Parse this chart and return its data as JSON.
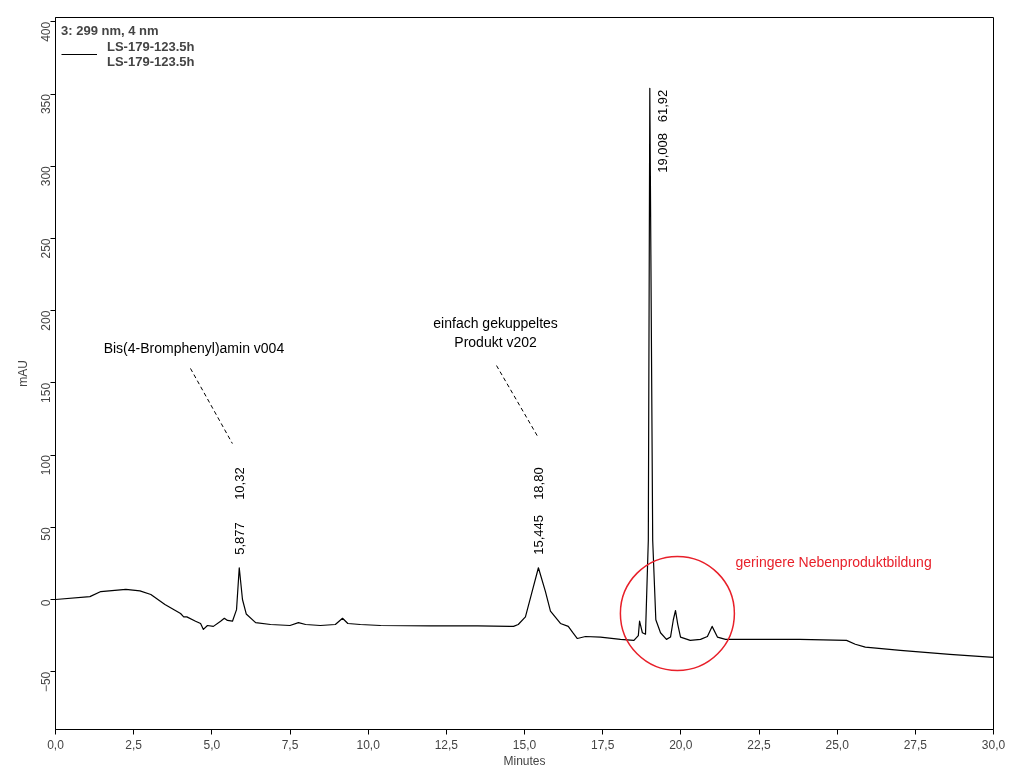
{
  "chart_data": {
    "type": "line",
    "xlabel": "Minutes",
    "ylabel": "mAU",
    "legend_title": "3: 299 nm, 4 nm",
    "xlim": [
      0,
      30
    ],
    "ylim": [
      -90,
      403
    ],
    "xticks": [
      {
        "value": 0,
        "label": "0,0"
      },
      {
        "value": 2.5,
        "label": "2,5"
      },
      {
        "value": 5,
        "label": "5,0"
      },
      {
        "value": 7.5,
        "label": "7,5"
      },
      {
        "value": 10,
        "label": "10,0"
      },
      {
        "value": 12.5,
        "label": "12,5"
      },
      {
        "value": 15,
        "label": "15,0"
      },
      {
        "value": 17.5,
        "label": "17,5"
      },
      {
        "value": 20,
        "label": "20,0"
      },
      {
        "value": 22.5,
        "label": "22,5"
      },
      {
        "value": 25,
        "label": "25,0"
      },
      {
        "value": 27.5,
        "label": "27,5"
      },
      {
        "value": 30,
        "label": "30,0"
      }
    ],
    "yticks": [
      -50,
      0,
      50,
      100,
      150,
      200,
      250,
      300,
      350,
      400
    ],
    "grid": false,
    "legend": "top left",
    "marker": "none",
    "line_style": "solid",
    "series": [
      {
        "name": "LS-179-123.5h\nLS-179-123.5h",
        "color": "#000000",
        "x": [
          0,
          1.1,
          1.45,
          2.25,
          2.7,
          3.05,
          3.5,
          4.0,
          4.1,
          4.2,
          4.48,
          4.64,
          4.73,
          4.86,
          5.05,
          5.28,
          5.4,
          5.5,
          5.66,
          5.79,
          5.877,
          5.98,
          6.1,
          6.4,
          6.88,
          7.5,
          7.77,
          8.0,
          8.47,
          8.95,
          9.18,
          9.35,
          9.75,
          10.4,
          12.0,
          13.5,
          14.65,
          14.8,
          15.03,
          15.22,
          15.445,
          15.67,
          15.83,
          16.15,
          16.4,
          16.54,
          16.69,
          16.95,
          17.43,
          18.07,
          18.5,
          18.64,
          18.68,
          18.77,
          18.87,
          18.96,
          19.008,
          19.1,
          19.2,
          19.35,
          19.54,
          19.67,
          19.76,
          19.83,
          19.9,
          19.99,
          20.3,
          20.63,
          20.85,
          21.0,
          21.17,
          21.43,
          22.55,
          23.8,
          25.3,
          25.58,
          25.9,
          27.02,
          28.6,
          30
        ],
        "values": [
          0,
          2,
          5.5,
          7,
          6,
          3.5,
          -3.5,
          -9.7,
          -12,
          -12,
          -15,
          -16.6,
          -20.7,
          -18,
          -18.6,
          -15,
          -13,
          -14.5,
          -15,
          -7,
          22,
          0,
          -10,
          -16,
          -17.3,
          -18,
          -16,
          -17.3,
          -18,
          -17.3,
          -13,
          -16.6,
          -17.3,
          -18,
          -18.3,
          -18.3,
          -18.6,
          -17.3,
          -12,
          3.5,
          22,
          5.5,
          -8,
          -16.6,
          -18.6,
          -22.8,
          -27,
          -25.6,
          -26,
          -27.6,
          -28.3,
          -25,
          -15,
          -23,
          -24,
          41,
          354,
          41,
          -14,
          -23,
          -27.6,
          -26,
          -14,
          -7.6,
          -17,
          -26,
          -28.3,
          -27.6,
          -25.6,
          -18.6,
          -26,
          -27.6,
          -27.6,
          -27.6,
          -28.3,
          -31,
          -33,
          -35.2,
          -38,
          -40
        ]
      }
    ],
    "annotations": [
      {
        "text": "5,877",
        "x": 5.877,
        "y": 22
      },
      "10,32",
      {
        "text": "15,445",
        "x": 15.445,
        "y": 22
      },
      "18,80",
      {
        "text": "61,92",
        "x": 19.008,
        "y": 354
      },
      "19,008",
      "Bis(4-Bromphenyl)amin v004",
      "einfach gekuppeltes\nProdukt v202",
      "geringere Nebenproduktbildung"
    ]
  }
}
